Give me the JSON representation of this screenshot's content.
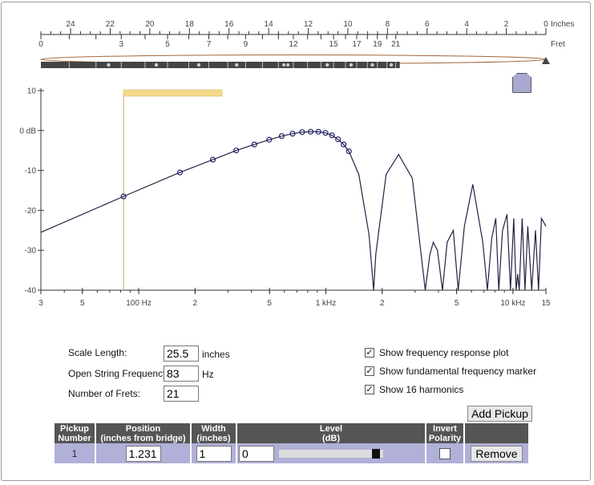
{
  "scale": {
    "inches_label": "Inches",
    "fret_label": "Fret",
    "inch_ticks": [
      "24",
      "22",
      "20",
      "18",
      "16",
      "14",
      "12",
      "10",
      "8",
      "6",
      "4",
      "2",
      "0"
    ],
    "fret_ticks": [
      "0",
      "3",
      "5",
      "7",
      "9",
      "12",
      "15",
      "17",
      "19",
      "21"
    ]
  },
  "chart_data": {
    "type": "line",
    "title": "",
    "xlabel": "",
    "ylabel": "",
    "x_scale": "log",
    "xlim": [
      30,
      15000
    ],
    "ylim": [
      -40,
      10
    ],
    "x_tick_labels": [
      "3",
      "5",
      "100 Hz",
      "2",
      "5",
      "1 kHz",
      "2",
      "5",
      "10 kHz",
      "15"
    ],
    "x_tick_values": [
      30,
      50,
      100,
      200,
      500,
      1000,
      2000,
      5000,
      10000,
      15000
    ],
    "y_tick_labels": [
      "10",
      "0 dB",
      "-10",
      "-20",
      "-30",
      "-40"
    ],
    "y_tick_values": [
      10,
      0,
      -10,
      -20,
      -30,
      -40
    ],
    "fundamental_hz": 83,
    "harmonics_hz": [
      83,
      166,
      249,
      332,
      415,
      498,
      581,
      664,
      747,
      830,
      913,
      996,
      1079,
      1162,
      1245,
      1328
    ],
    "harmonics_db": [
      -16.5,
      -10.5,
      -7.3,
      -5.0,
      -3.5,
      -2.3,
      -1.4,
      -0.8,
      -0.4,
      -0.3,
      -0.3,
      -0.6,
      -1.2,
      -2.2,
      -3.5,
      -5.2
    ],
    "response_curve": {
      "x": [
        30,
        83,
        166,
        249,
        332,
        415,
        498,
        581,
        664,
        747,
        830,
        913,
        996,
        1079,
        1162,
        1245,
        1328,
        1500,
        1700,
        1800,
        1850,
        2100,
        2450,
        2900,
        3400,
        3600,
        3750,
        3950,
        4200,
        4450,
        4800,
        5100,
        5500,
        6100,
        6900,
        7300,
        7700,
        8100,
        8400,
        8800,
        9300,
        9700,
        10100,
        10400,
        10600,
        10800,
        11200,
        11600,
        12000,
        12600,
        13200,
        13700,
        14200,
        14600,
        15000
      ],
      "y": [
        -25.5,
        -16.5,
        -10.5,
        -7.3,
        -5.0,
        -3.5,
        -2.3,
        -1.4,
        -0.8,
        -0.4,
        -0.3,
        -0.3,
        -0.6,
        -1.2,
        -2.2,
        -3.5,
        -5.2,
        -11,
        -26,
        -40,
        -31,
        -11,
        -6,
        -12,
        -40,
        -31,
        -28,
        -30,
        -40,
        -28,
        -25,
        -40,
        -24,
        -13.5,
        -28,
        -40,
        -27,
        -22,
        -40,
        -25,
        -21,
        -40,
        -22,
        -40,
        -36,
        -40,
        -22,
        -40,
        -24,
        -40,
        -25,
        -40,
        -22,
        -23,
        -24
      ]
    }
  },
  "controls": {
    "scale_length_label": "Scale Length:",
    "scale_length_value": "25.5",
    "scale_length_unit": "inches",
    "open_freq_label": "Open String Frequency:",
    "open_freq_value": "83",
    "open_freq_unit": "Hz",
    "num_frets_label": "Number of Frets:",
    "num_frets_value": "21"
  },
  "options": {
    "show_response_label": "Show frequency response plot",
    "show_fundamental_label": "Show fundamental frequency marker",
    "show_harmonics_label": "Show 16 harmonics",
    "check_mark": "✓"
  },
  "add_pickup_label": "Add Pickup",
  "table": {
    "headers": {
      "pickup_number": "Pickup\nNumber",
      "position": "Position\n(inches from bridge)",
      "width": "Width\n(inches)",
      "level": "Level\n(dB)",
      "invert": "Invert\nPolarity"
    },
    "rows": [
      {
        "number": "1",
        "position": "1.231",
        "width": "1",
        "level": "0",
        "level_fraction": 0.97,
        "remove_label": "Remove"
      }
    ]
  },
  "colors": {
    "curve": "#222244",
    "harmonic_marker": "#22226e",
    "fundamental_marker": "#f5d98b",
    "fundamental_line": "#c9a66b",
    "string_ellipse": "#a0663a",
    "pickup_handle": "#a8a8d0"
  }
}
